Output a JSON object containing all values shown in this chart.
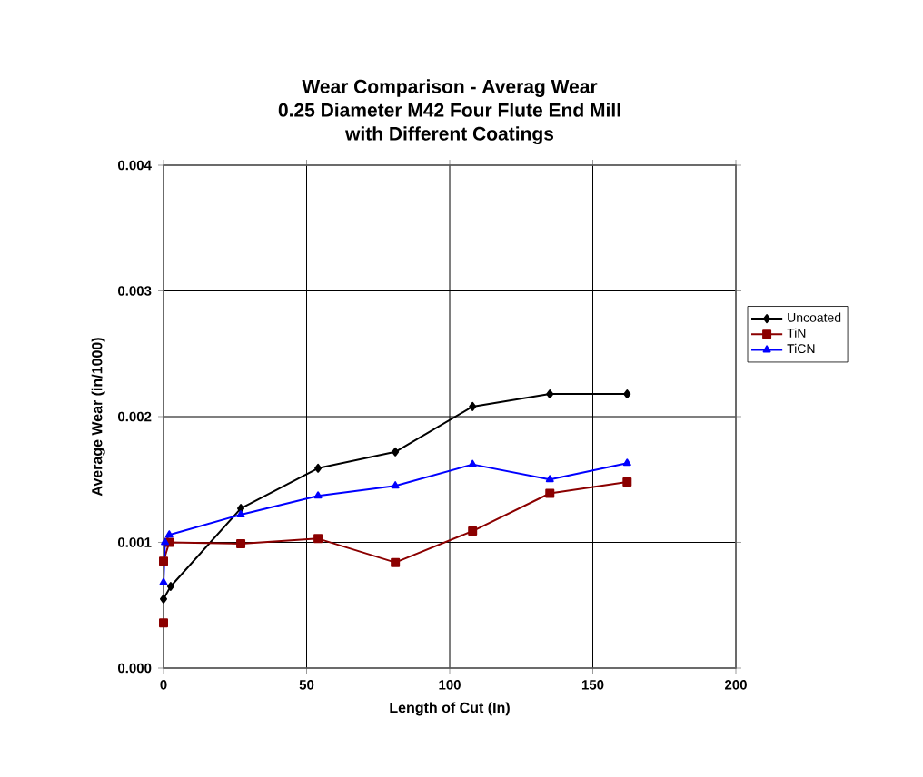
{
  "chart_data": {
    "type": "line",
    "title": "Wear Comparison - Averag Wear\n0.25 Diameter  M42 Four Flute End Mill\nwith Different Coatings",
    "xlabel": "Length of Cut (In)",
    "ylabel": "Average Wear (in/1000)",
    "xlim": [
      0,
      200
    ],
    "xticks": [
      0,
      50,
      100,
      150,
      200
    ],
    "ylim": [
      0,
      0.004
    ],
    "yticks": [
      {
        "value": 0,
        "label": "0.000"
      },
      {
        "value": 0.001,
        "label": "0.001"
      },
      {
        "value": 0.002,
        "label": "0.002"
      },
      {
        "value": 0.003,
        "label": "0.003"
      },
      {
        "value": 0.004,
        "label": "0.004"
      }
    ],
    "grid": true,
    "legend": "right",
    "line_style": "solid",
    "series": [
      {
        "name": "Uncoated",
        "color": "#000000",
        "marker": "diamond",
        "x": [
          0,
          2.5,
          27,
          54,
          81,
          108,
          135,
          162
        ],
        "values": [
          0.00055,
          0.00065,
          0.00127,
          0.00159,
          0.00172,
          0.00208,
          0.00218,
          0.00218
        ]
      },
      {
        "name": "TiN",
        "color": "#8b0000",
        "marker": "square",
        "x": [
          0,
          0,
          2,
          27,
          54,
          81,
          108,
          135,
          162
        ],
        "values": [
          0.00036,
          0.00085,
          0.001,
          0.00099,
          0.00103,
          0.00084,
          0.00109,
          0.00139,
          0.00148
        ]
      },
      {
        "name": "TiCN",
        "color": "#0000ff",
        "marker": "triangle",
        "x": [
          0,
          0.5,
          2,
          27,
          54,
          81,
          108,
          135,
          162
        ],
        "values": [
          0.00068,
          0.001,
          0.00106,
          0.00122,
          0.00137,
          0.00145,
          0.00162,
          0.0015,
          0.00163
        ]
      }
    ]
  }
}
